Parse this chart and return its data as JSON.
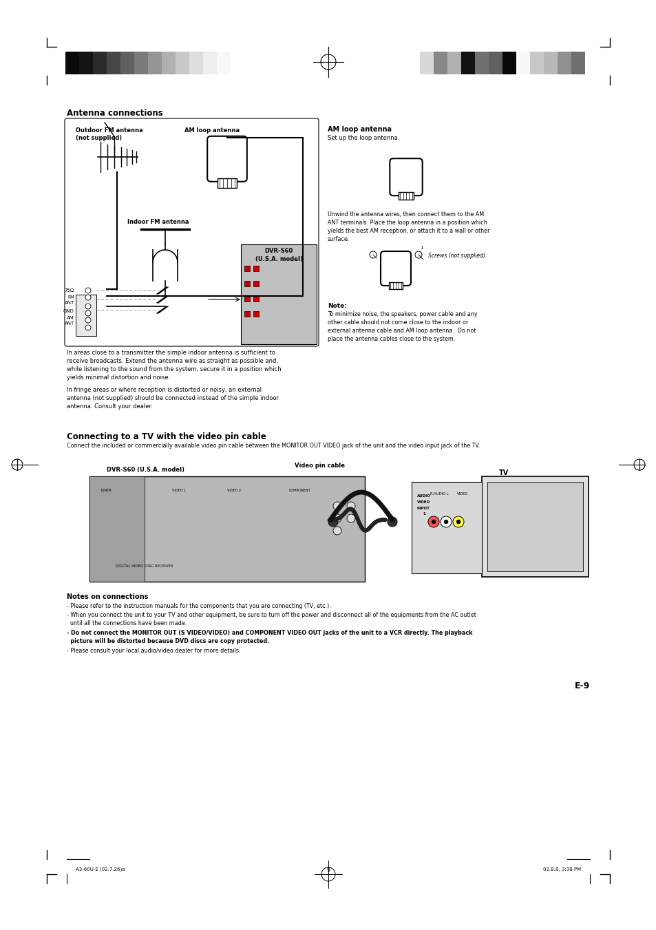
{
  "page_bg": "#ffffff",
  "page_width": 9.54,
  "page_height": 13.51,
  "dpi": 100,
  "section1_title": "Antenna connections",
  "section2_title": "Connecting to a TV with the video pin cable",
  "section2_subtitle": "Connect the included or commercially available video pin cable between the MONITOR OUT VIDEO jack of the unit and the video input jack of the TV.",
  "notes_title": "Notes on connections",
  "note1": "- Please refer to the instruction manuals for the components that you are connecting (TV, etc.).",
  "note2": "- When you connect the unit to your TV and other equipment, be sure to turn off the power and disconnect all of the equipments from the AC outlet",
  "note2b": "  until all the connections have been made.",
  "note3a": "- Do not connect the MONITOR OUT (S VIDEO/VIDEO) and COMPONENT VIDEO OUT jacks of the unit to a VCR directly. The playback",
  "note3b": "  picture will be distorted because DVD discs are copy protected.",
  "note4": "- Please consult your local audio/video dealer for more details.",
  "footer_left": "A3-60U-E (02.7.26)a",
  "footer_center": "9",
  "footer_right": "02.8.8, 3:38 PM",
  "page_number": "E-9",
  "am_loop_title": "AM loop antenna",
  "am_loop_desc": "Set up the loop antenna.",
  "am_loop_desc2_line1": "Unwind the antenna wires, then connect them to the AM",
  "am_loop_desc2_line2": "ANT terminals. Place the loop antenna in a position which",
  "am_loop_desc2_line3": "yields the best AM reception, or attach it to a wall or other",
  "am_loop_desc2_line4": "surface.",
  "screws_label": "Screws (not supplied)",
  "note_label": "Note:",
  "note_text_line1": "To minimize noise, the speakers, power cable and any",
  "note_text_line2": "other cable should not come close to the indoor or",
  "note_text_line3": "external antenna cable and AM loop antenna . Do not",
  "note_text_line4": "place the antenna cables close to the system.",
  "dvrs60_label1": "DVR-S60",
  "dvrs60_label2": "(U.S.A. model)",
  "dvrs60_label3_sec2": "DVR-S60 (U.S.A. model)",
  "video_pin_label": "Video pin cable",
  "tv_label": "TV",
  "outdoor_fm_label1": "Outdoor FM antenna",
  "outdoor_fm_label2": "(not supplied)",
  "am_loop_box_label": "AM loop antenna",
  "indoor_fm_label": "Indoor FM antenna",
  "antenna_para_line1": "In areas close to a transmitter the simple indoor antenna is sufficient to",
  "antenna_para_line2": "receive broadcasts. Extend the antenna wire as straight as possible and,",
  "antenna_para_line3": "while listening to the sound from the system, secure it in a position which",
  "antenna_para_line4": "yields minimal distortion and noise.",
  "antenna_para_line5": "In fringe areas or where reception is distorted or noisy, an external",
  "antenna_para_line6": "antenna (not supplied) should be connected instead of the simple indoor",
  "antenna_para_line7": "antenna. Consult your dealer.",
  "left_bar_colors": [
    "#090909",
    "#131313",
    "#2a2a2a",
    "#474747",
    "#606060",
    "#7a7a7a",
    "#959595",
    "#b0b0b0",
    "#c8c8c8",
    "#dddddd",
    "#eeeeee",
    "#f8f8f8"
  ],
  "right_bar_colors": [
    "#d8d8d8",
    "#888888",
    "#b0b0b0",
    "#111111",
    "#707070",
    "#606060",
    "#080808",
    "#f8f8f8",
    "#c8c8c8",
    "#b8b8b8",
    "#909090",
    "#707070"
  ]
}
